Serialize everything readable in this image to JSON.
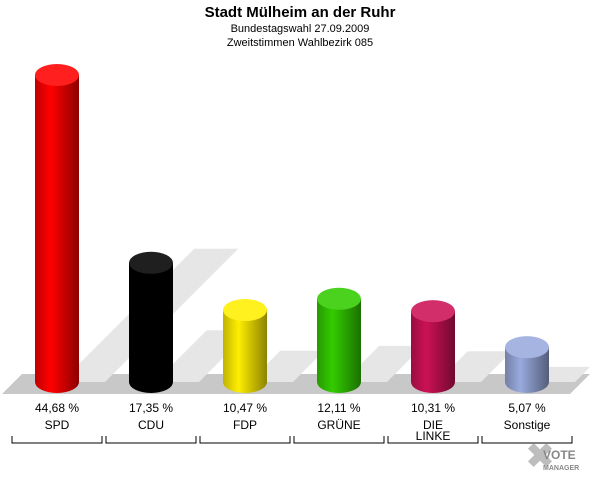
{
  "header": {
    "title": "Stadt Mülheim an der Ruhr",
    "subtitle1": "Bundestagswahl 27.09.2009",
    "subtitle2": "Zweitstimmen Wahlbezirk 085"
  },
  "logo": {
    "line1": "VOTE",
    "line2": "MANAGER"
  },
  "colors": {
    "SPD": "#ff0000",
    "CDU": "#000000",
    "FDP": "#ffee00",
    "GRÜNE": "#33cc00",
    "DIE LINKE": "#cc1155",
    "Sonstige": "#99aadd"
  },
  "chart_data": {
    "type": "bar",
    "title": "Stadt Mülheim an der Ruhr",
    "categories": [
      "SPD",
      "CDU",
      "FDP",
      "GRÜNE",
      "DIE LINKE",
      "Sonstige"
    ],
    "category_labels": [
      [
        "SPD"
      ],
      [
        "CDU"
      ],
      [
        "FDP"
      ],
      [
        "GRÜNE"
      ],
      [
        "DIE",
        "LINKE"
      ],
      [
        "Sonstige"
      ]
    ],
    "values": [
      44.68,
      17.35,
      10.47,
      12.11,
      10.31,
      5.07
    ],
    "value_labels": [
      "44,68 %",
      "17,35 %",
      "10,47 %",
      "12,11 %",
      "10,31 %",
      "5,07 %"
    ],
    "ylim": [
      0,
      44.68
    ],
    "grid": false,
    "legend": "none"
  }
}
